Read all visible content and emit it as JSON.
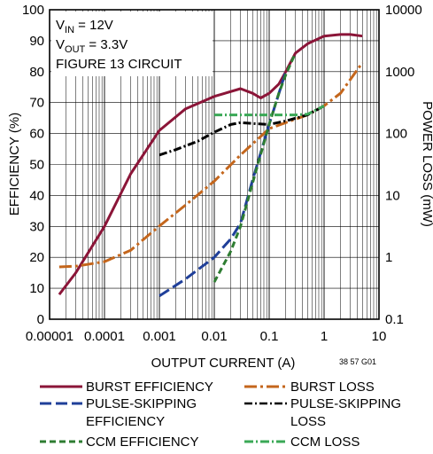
{
  "chart_data": {
    "type": "line",
    "xlabel": "OUTPUT CURRENT (A)",
    "ylabel": "EFFICIENCY (%)",
    "y2label": "POWER LOSS (mW)",
    "x_scale": "log",
    "xlim": [
      1e-05,
      10
    ],
    "ylim": [
      0,
      100
    ],
    "y2_scale": "log",
    "y2lim": [
      0.1,
      10000
    ],
    "grid": true,
    "x_ticks": [
      "0.00001",
      "0.0001",
      "0.001",
      "0.01",
      "0.1",
      "1",
      "10"
    ],
    "y_ticks": [
      "0",
      "10",
      "20",
      "30",
      "40",
      "50",
      "60",
      "70",
      "80",
      "90",
      "100"
    ],
    "y2_ticks": [
      "0.1",
      "1",
      "10",
      "100",
      "1000",
      "10000"
    ],
    "annotation": {
      "vin_sym": "V",
      "vin_sub": "IN",
      "vin_val": " = 12V",
      "vout_sym": "V",
      "vout_sub": "OUT",
      "vout_val": " = 3.3V",
      "circuit": "FIGURE 13 CIRCUIT"
    },
    "figure_code": "38 57 G01",
    "series": [
      {
        "name": "BURST EFFICIENCY",
        "axis": "left",
        "color": "#8b1538",
        "dash": "solid",
        "x": [
          1.5e-05,
          3e-05,
          0.0001,
          0.0003,
          0.001,
          0.003,
          0.01,
          0.03,
          0.05,
          0.07,
          0.1,
          0.15,
          0.2,
          0.3,
          0.5,
          1,
          2,
          3,
          5
        ],
        "y": [
          8,
          15,
          30,
          47,
          61,
          68,
          72,
          74.5,
          73,
          71.5,
          73,
          76,
          80,
          86,
          89,
          91.5,
          92,
          92,
          91.5
        ]
      },
      {
        "name": "BURST LOSS",
        "axis": "right",
        "color": "#c4661c",
        "dash": "longdash-dot",
        "x": [
          1.5e-05,
          3e-05,
          0.0001,
          0.0003,
          0.001,
          0.003,
          0.01,
          0.03,
          0.1,
          0.2,
          0.5,
          1,
          2,
          5
        ],
        "y": [
          0.7,
          0.72,
          0.85,
          1.3,
          3.2,
          7,
          17,
          45,
          120,
          150,
          200,
          280,
          450,
          1400
        ]
      },
      {
        "name": "PULSE-SKIPPING EFFICIENCY",
        "axis": "left",
        "color": "#1f3f99",
        "dash": "longdash",
        "x": [
          0.001,
          0.003,
          0.01,
          0.02,
          0.03,
          0.05,
          0.1,
          0.2
        ],
        "y": [
          7.5,
          13,
          20,
          26,
          31,
          45,
          63,
          80
        ]
      },
      {
        "name": "PULSE-SKIPPING LOSS",
        "axis": "right",
        "color": "#000000",
        "dash": "dashdot",
        "x": [
          0.001,
          0.002,
          0.005,
          0.01,
          0.02,
          0.03,
          0.05,
          0.1,
          0.2,
          0.5,
          1
        ],
        "y": [
          45,
          55,
          75,
          105,
          140,
          150,
          145,
          140,
          160,
          200,
          280
        ]
      },
      {
        "name": "CCM EFFICIENCY",
        "axis": "left",
        "color": "#2e7d32",
        "dash": "dashed",
        "x": [
          0.01,
          0.02,
          0.03,
          0.05,
          0.1,
          0.15,
          0.2,
          0.3
        ],
        "y": [
          12,
          22,
          30,
          44,
          63,
          73,
          79,
          86
        ]
      },
      {
        "name": "CCM LOSS",
        "axis": "right",
        "color": "#3aa856",
        "dash": "dashdot",
        "x": [
          0.01,
          0.03,
          0.1,
          0.3,
          0.5,
          1
        ],
        "y": [
          200,
          200,
          200,
          200,
          205,
          280
        ]
      }
    ],
    "legend": {
      "placement": "bottom",
      "items": [
        {
          "key": "burst_eff",
          "line1": "BURST EFFICIENCY",
          "line2": ""
        },
        {
          "key": "burst_loss",
          "line1": "BURST LOSS",
          "line2": ""
        },
        {
          "key": "ps_eff",
          "line1": "PULSE-SKIPPING",
          "line2": "EFFICIENCY"
        },
        {
          "key": "ps_loss",
          "line1": "PULSE-SKIPPING",
          "line2": "LOSS"
        },
        {
          "key": "ccm_eff",
          "line1": "CCM EFFICIENCY",
          "line2": ""
        },
        {
          "key": "ccm_loss",
          "line1": "CCM LOSS",
          "line2": ""
        }
      ]
    }
  }
}
